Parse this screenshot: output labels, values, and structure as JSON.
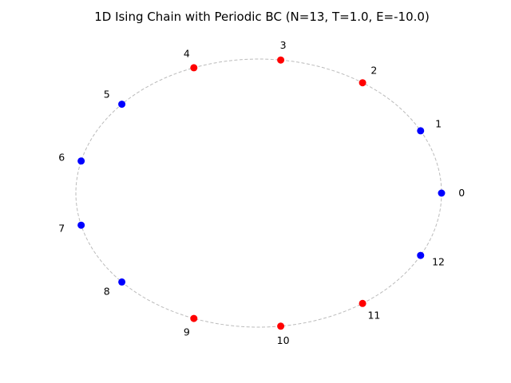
{
  "chart_data": {
    "type": "scatter",
    "title": "1D Ising Chain with Periodic BC (N=13, T=1.0, E=-10.0)",
    "xlabel": "",
    "ylabel": "",
    "axes_visible": false,
    "grid": false,
    "layout": "circle",
    "ring_style": "dashed",
    "ring_color": "#bbbbbb",
    "spin_colors": {
      "up": "#ff0000",
      "down": "#0000ff"
    },
    "nodes": [
      {
        "index": 0,
        "label": "0",
        "spin": "down"
      },
      {
        "index": 1,
        "label": "1",
        "spin": "down"
      },
      {
        "index": 2,
        "label": "2",
        "spin": "up"
      },
      {
        "index": 3,
        "label": "3",
        "spin": "up"
      },
      {
        "index": 4,
        "label": "4",
        "spin": "up"
      },
      {
        "index": 5,
        "label": "5",
        "spin": "down"
      },
      {
        "index": 6,
        "label": "6",
        "spin": "down"
      },
      {
        "index": 7,
        "label": "7",
        "spin": "down"
      },
      {
        "index": 8,
        "label": "8",
        "spin": "down"
      },
      {
        "index": 9,
        "label": "9",
        "spin": "up"
      },
      {
        "index": 10,
        "label": "10",
        "spin": "up"
      },
      {
        "index": 11,
        "label": "11",
        "spin": "up"
      },
      {
        "index": 12,
        "label": "12",
        "spin": "down"
      }
    ]
  }
}
